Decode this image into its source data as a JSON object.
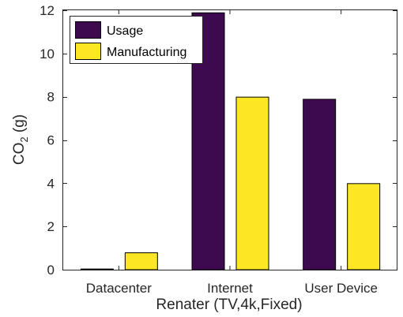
{
  "chart_data": {
    "type": "bar",
    "categories": [
      "Datacenter",
      "Internet",
      "User Device"
    ],
    "series": [
      {
        "name": "Usage",
        "values": [
          0.05,
          11.9,
          7.9
        ],
        "color": "#3d0a4f"
      },
      {
        "name": "Manufacturing",
        "values": [
          0.8,
          8.0,
          4.0
        ],
        "color": "#fde725"
      }
    ],
    "xlabel": "Renater (TV,4k,Fixed)",
    "ylabel": "CO",
    "ylabel_subscript": "2",
    "ylabel_unit": " (g)",
    "ylim": [
      0,
      12
    ],
    "yticks": [
      0,
      2,
      4,
      6,
      8,
      10,
      12
    ],
    "grid": false,
    "legend_position": "top-left"
  }
}
